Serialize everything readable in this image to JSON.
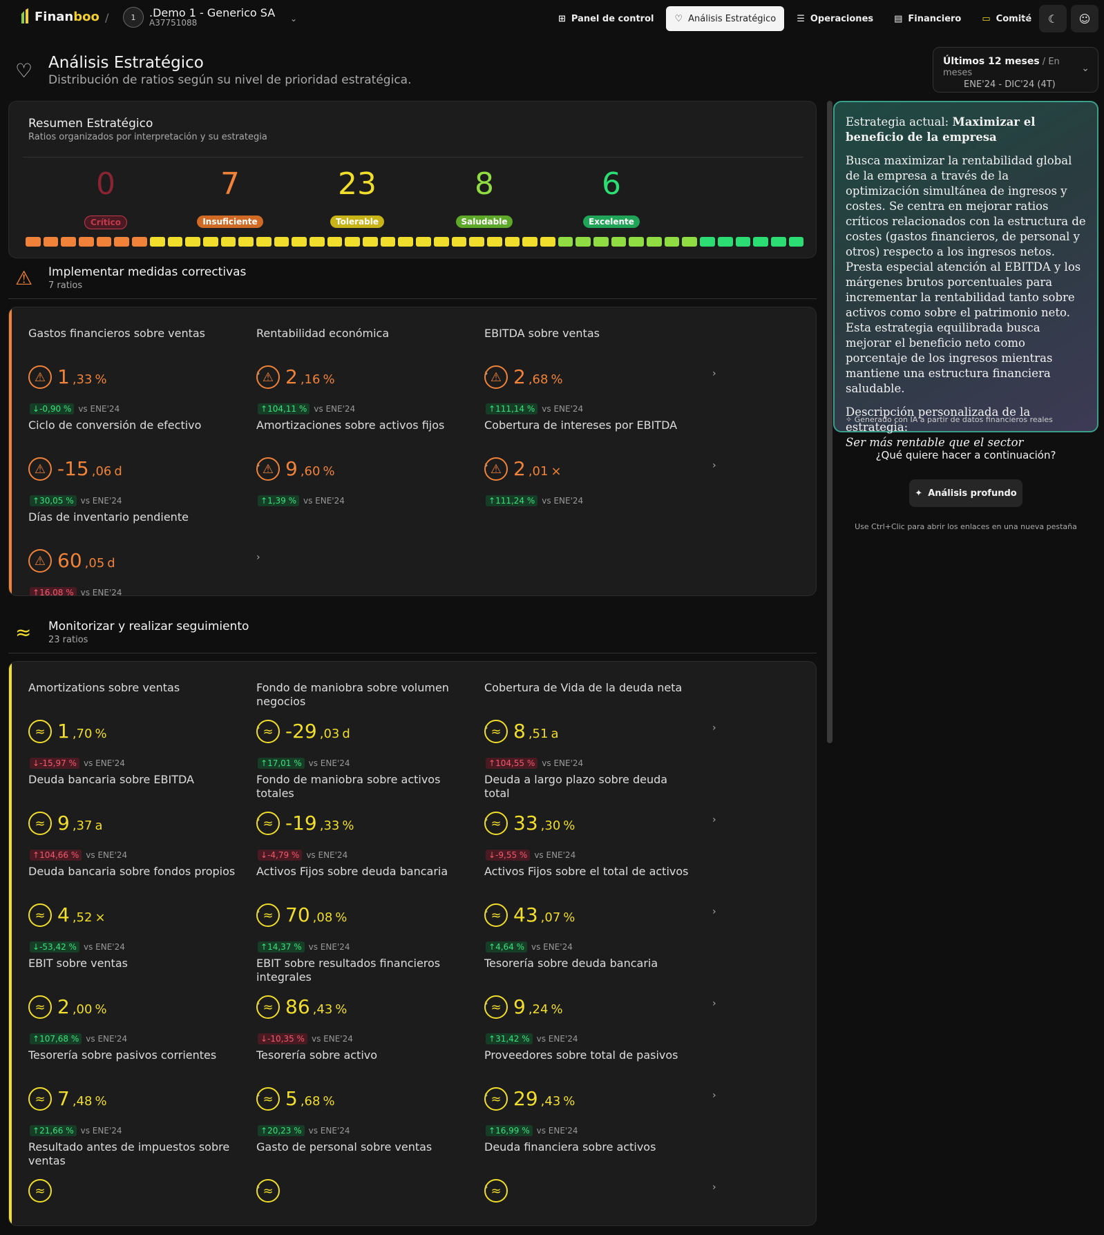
{
  "topbar": {
    "logo_fin": "Finan",
    "logo_boo": "boo",
    "separator": "/",
    "company_avatar": "1",
    "company_name": ".Demo 1 - Generico SA",
    "company_id": "A37751088",
    "nav": [
      {
        "label": "Panel de control",
        "icon": "grid-icon"
      },
      {
        "label": "Análisis Estratégico",
        "icon": "heart-handshake-icon",
        "active": true
      },
      {
        "label": "Operaciones",
        "icon": "list-icon"
      },
      {
        "label": "Financiero",
        "icon": "calculator-icon"
      },
      {
        "label": "Comité",
        "icon": "presentation-icon"
      }
    ]
  },
  "header": {
    "title": "Análisis Estratégico",
    "subtitle": "Distribución de ratios según su nivel de prioridad estratégica.",
    "period_main": "Últimos 12 meses",
    "period_mode": " / En meses",
    "period_range": "ENE'24 - DIC'24 (4T)"
  },
  "summary": {
    "title": "Resumen Estratégico",
    "subtitle": "Ratios organizados por interpretación y su estrategia",
    "stats": [
      {
        "value": "0",
        "label": "Crítico",
        "color": "#8a2433",
        "pill": "#4a1a22"
      },
      {
        "value": "7",
        "label": "Insuficiente",
        "color": "#f0823a",
        "pill": "#d06a24"
      },
      {
        "value": "23",
        "label": "Tolerable",
        "color": "#f1de2c",
        "pill": "#c9b417"
      },
      {
        "value": "8",
        "label": "Saludable",
        "color": "#8fdc43",
        "pill": "#5ea82a"
      },
      {
        "value": "6",
        "label": "Excelente",
        "color": "#2bdd72",
        "pill": "#1fa458"
      }
    ],
    "segments": {
      "insuficiente": 7,
      "tolerable": 23,
      "saludable": 8,
      "excelente": 6
    },
    "segment_colors": {
      "insuficiente": "#f0823a",
      "tolerable": "#f1de2c",
      "saludable": "#8fdc43",
      "excelente": "#2bdd72"
    }
  },
  "sections": [
    {
      "title": "Implementar medidas correctivas",
      "count": "7 ratios",
      "color": "#f0823a",
      "icon": "⚠",
      "cards": [
        {
          "name": "Gastos financieros sobre ventas",
          "int": "1",
          "dec": ",33",
          "unit": "%",
          "delta": "-0,90 %",
          "dir": "down",
          "good": true
        },
        {
          "name": "Rentabilidad económica",
          "int": "2",
          "dec": ",16",
          "unit": "%",
          "delta": "104,11 %",
          "dir": "up",
          "good": true
        },
        {
          "name": "EBITDA sobre ventas",
          "int": "2",
          "dec": ",68",
          "unit": "%",
          "delta": "111,14 %",
          "dir": "up",
          "good": true
        },
        {
          "name": "Ciclo de conversión de efectivo",
          "int": "-15",
          "dec": ",06",
          "unit": "d",
          "delta": "30,05 %",
          "dir": "up",
          "good": true
        },
        {
          "name": "Amortizaciones sobre activos fijos",
          "int": "9",
          "dec": ",60",
          "unit": "%",
          "delta": "1,39 %",
          "dir": "up",
          "good": true
        },
        {
          "name": "Cobertura de intereses por EBITDA",
          "int": "2",
          "dec": ",01",
          "unit": "×",
          "delta": "111,24 %",
          "dir": "up",
          "good": true
        },
        {
          "name": "Días de inventario pendiente",
          "int": "60",
          "dec": ",05",
          "unit": "d",
          "delta": "16,08 %",
          "dir": "up",
          "good": false
        }
      ]
    },
    {
      "title": "Monitorizar y realizar seguimiento",
      "count": "23 ratios",
      "color": "#f1de2c",
      "icon": "≈",
      "cards": [
        {
          "name": "Amortizations sobre ventas",
          "int": "1",
          "dec": ",70",
          "unit": "%",
          "delta": "-15,97 %",
          "dir": "down",
          "good": false
        },
        {
          "name": "Fondo de maniobra sobre volumen negocios",
          "int": "-29",
          "dec": ",03",
          "unit": "d",
          "delta": "17,01 %",
          "dir": "up",
          "good": true
        },
        {
          "name": "Cobertura de Vida de la deuda neta",
          "int": "8",
          "dec": ",51",
          "unit": "a",
          "delta": "104,55 %",
          "dir": "up",
          "good": false
        },
        {
          "name": "Deuda bancaria sobre EBITDA",
          "int": "9",
          "dec": ",37",
          "unit": "a",
          "delta": "104,66 %",
          "dir": "up",
          "good": false
        },
        {
          "name": "Fondo de maniobra sobre activos totales",
          "int": "-19",
          "dec": ",33",
          "unit": "%",
          "delta": "-4,79 %",
          "dir": "down",
          "good": false
        },
        {
          "name": "Deuda a largo plazo sobre deuda total",
          "int": "33",
          "dec": ",30",
          "unit": "%",
          "delta": "-9,55 %",
          "dir": "down",
          "good": false
        },
        {
          "name": "Deuda bancaria sobre fondos propios",
          "int": "4",
          "dec": ",52",
          "unit": "×",
          "delta": "-53,42 %",
          "dir": "down",
          "good": true
        },
        {
          "name": "Activos Fijos sobre deuda bancaria",
          "int": "70",
          "dec": ",08",
          "unit": "%",
          "delta": "14,37 %",
          "dir": "up",
          "good": true
        },
        {
          "name": "Activos Fijos sobre el total de activos",
          "int": "43",
          "dec": ",07",
          "unit": "%",
          "delta": "4,64 %",
          "dir": "up",
          "good": true
        },
        {
          "name": "EBIT sobre ventas",
          "int": "2",
          "dec": ",00",
          "unit": "%",
          "delta": "107,68 %",
          "dir": "up",
          "good": true
        },
        {
          "name": "EBIT sobre resultados financieros integrales",
          "int": "86",
          "dec": ",43",
          "unit": "%",
          "delta": "-10,35 %",
          "dir": "down",
          "good": false
        },
        {
          "name": "Tesorería sobre deuda bancaria",
          "int": "9",
          "dec": ",24",
          "unit": "%",
          "delta": "31,42 %",
          "dir": "up",
          "good": true
        },
        {
          "name": "Tesorería sobre pasivos corrientes",
          "int": "7",
          "dec": ",48",
          "unit": "%",
          "delta": "21,66 %",
          "dir": "up",
          "good": true
        },
        {
          "name": "Tesorería sobre activo",
          "int": "5",
          "dec": ",68",
          "unit": "%",
          "delta": "20,23 %",
          "dir": "up",
          "good": true
        },
        {
          "name": "Proveedores sobre total de pasivos",
          "int": "29",
          "dec": ",43",
          "unit": "%",
          "delta": "16,99 %",
          "dir": "up",
          "good": true
        },
        {
          "name": "Resultado antes de impuestos sobre ventas",
          "int": "",
          "dec": "",
          "unit": "",
          "delta": "",
          "dir": "",
          "good": true
        },
        {
          "name": "Gasto de personal sobre ventas",
          "int": "",
          "dec": "",
          "unit": "",
          "delta": "",
          "dir": "",
          "good": true
        },
        {
          "name": "Deuda financiera sobre activos",
          "int": "",
          "dec": "",
          "unit": "",
          "delta": "",
          "dir": "",
          "good": true
        }
      ]
    }
  ],
  "delta_suffix": "vs ENE'24",
  "strategy": {
    "label": "Estrategia actual:",
    "name": "Maximizar el beneficio de la empresa",
    "description": "Busca maximizar la rentabilidad global de la empresa a través de la optimización simultánea de ingresos y costes. Se centra en mejorar ratios críticos relacionados con la estructura de costes (gastos financieros, de personal y otros) respecto a los ingresos netos. Presta especial atención al EBITDA y los márgenes brutos porcentuales para incrementar la rentabilidad tanto sobre activos como sobre el patrimonio neto. Esta estrategia equilibrada busca mejorar el beneficio neto como porcentaje de los ingresos mientras mantiene una estructura financiera saludable.",
    "custom_label": "Descripción personalizada de la estrategia:",
    "custom_value": "Ser más rentable que el sector",
    "generated": "Generado con IA a partir de datos financieros reales"
  },
  "next": {
    "question": "¿Qué quiere hacer a continuación?",
    "deep_button": "Análisis profundo",
    "hint": "Use Ctrl+Clic para abrir los enlaces en una nueva pestaña"
  }
}
